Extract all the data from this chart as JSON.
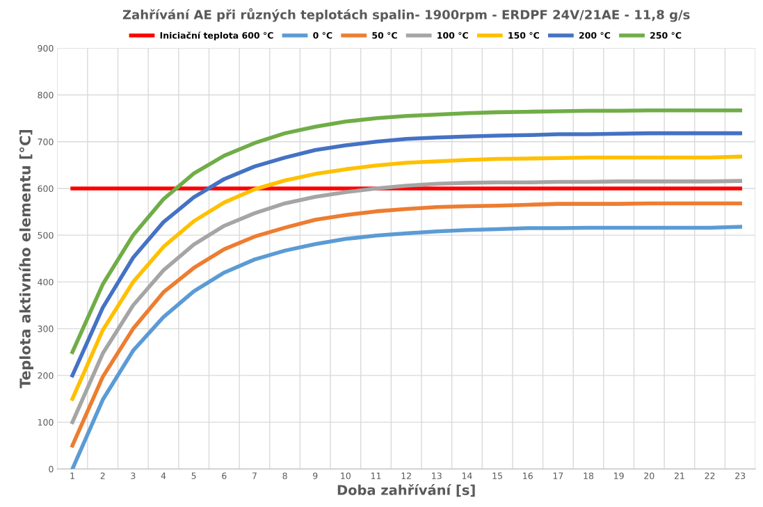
{
  "chart_data": {
    "type": "line",
    "title": "Zahřívání AE při různých teplotách spalin- 1900rpm - ERDPF 24V/21AE - 11,8 g/s",
    "xlabel": "Doba zahřívání [s]",
    "ylabel": "Teplota aktivního elementu [°C]",
    "categories": [
      "1",
      "2",
      "3",
      "4",
      "5",
      "6",
      "7",
      "8",
      "9",
      "10",
      "11",
      "12",
      "13",
      "14",
      "15",
      "16",
      "17",
      "18",
      "19",
      "20",
      "21",
      "22",
      "23"
    ],
    "ylim": [
      0,
      900
    ],
    "yticks": [
      0,
      100,
      200,
      300,
      400,
      500,
      600,
      700,
      800,
      900
    ],
    "grid": true,
    "legend": "top",
    "marker": "none",
    "line_style": "solid",
    "series": [
      {
        "name": "Iniciační teplota 600 °C",
        "color": "#ff0000",
        "values": [
          600,
          600,
          600,
          600,
          600,
          600,
          600,
          600,
          600,
          600,
          600,
          600,
          600,
          600,
          600,
          600,
          600,
          600,
          600,
          600,
          600,
          600,
          600
        ]
      },
      {
        "name": "0 °C",
        "color": "#5b9bd5",
        "values": [
          0,
          148,
          253,
          325,
          380,
          420,
          448,
          467,
          481,
          492,
          499,
          504,
          508,
          511,
          513,
          515,
          515,
          516,
          516,
          516,
          516,
          516,
          518
        ]
      },
      {
        "name": "50 °C",
        "color": "#ed7d31",
        "values": [
          50,
          197,
          300,
          378,
          430,
          470,
          497,
          516,
          533,
          543,
          551,
          556,
          560,
          562,
          563,
          565,
          567,
          567,
          567,
          568,
          568,
          568,
          568
        ]
      },
      {
        "name": "100 °C",
        "color": "#a5a5a5",
        "values": [
          100,
          247,
          350,
          425,
          480,
          520,
          547,
          568,
          582,
          592,
          600,
          606,
          610,
          612,
          613,
          613,
          614,
          614,
          615,
          615,
          615,
          615,
          616
        ]
      },
      {
        "name": "150 °C",
        "color": "#ffc000",
        "values": [
          150,
          297,
          400,
          475,
          530,
          570,
          598,
          617,
          631,
          641,
          649,
          655,
          658,
          661,
          663,
          664,
          665,
          666,
          666,
          666,
          666,
          666,
          668
        ]
      },
      {
        "name": "200 °C",
        "color": "#4472c4",
        "values": [
          200,
          345,
          452,
          528,
          581,
          620,
          647,
          666,
          682,
          692,
          700,
          706,
          709,
          711,
          713,
          714,
          716,
          716,
          717,
          718,
          718,
          718,
          718
        ]
      },
      {
        "name": "250 °C",
        "color": "#70ad47",
        "values": [
          250,
          395,
          500,
          577,
          632,
          670,
          697,
          718,
          732,
          743,
          750,
          755,
          758,
          761,
          763,
          764,
          765,
          766,
          766,
          767,
          767,
          767,
          767
        ]
      }
    ]
  }
}
